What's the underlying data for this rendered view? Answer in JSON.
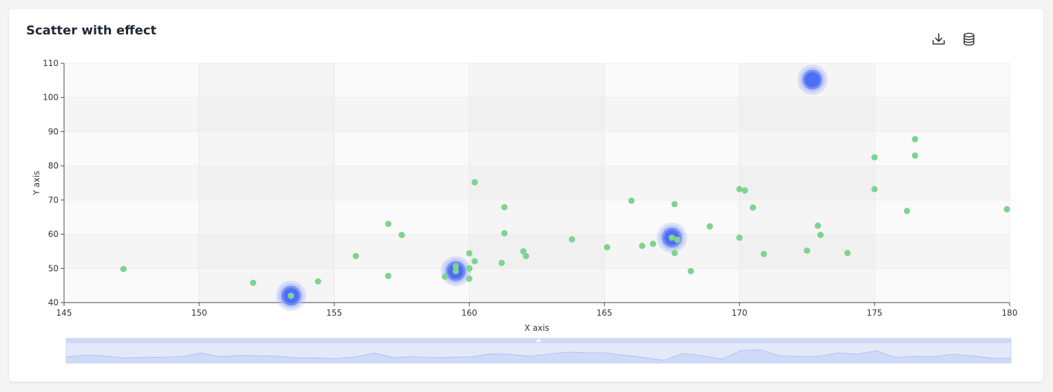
{
  "header": {
    "title": "Scatter with effect"
  },
  "toolbox": {
    "download_icon": "download-icon",
    "data_view_icon": "database-icon"
  },
  "colors": {
    "scatter_point": "#7dd48f",
    "effect_point": "#4d6ef5",
    "effect_ripple": "#a9b8f7",
    "axis_line": "#444444",
    "split_area_a": "#fafafa",
    "split_area_b": "#f4f4f4",
    "zoom_fill": "#dde6f8",
    "zoom_line": "#a7bdf0"
  },
  "chart_data": {
    "type": "scatter",
    "title": "Scatter with effect",
    "xlabel": "X axis",
    "ylabel": "Y axis",
    "xlim": [
      145,
      180
    ],
    "ylim": [
      40,
      110
    ],
    "x_ticks": [
      145,
      150,
      155,
      160,
      165,
      170,
      175,
      180
    ],
    "y_ticks": [
      40,
      50,
      60,
      70,
      80,
      90,
      100,
      110
    ],
    "grid": true,
    "split_area": true,
    "series": [
      {
        "points": [
          [
            147.2,
            49.8
          ],
          [
            152.0,
            45.8
          ],
          [
            154.4,
            46.2
          ],
          [
            155.8,
            53.6
          ],
          [
            157.0,
            63.0
          ],
          [
            157.0,
            47.8
          ],
          [
            157.5,
            59.8
          ],
          [
            159.1,
            47.6
          ],
          [
            159.5,
            50.6
          ],
          [
            159.5,
            49.2
          ],
          [
            160.0,
            54.4
          ],
          [
            160.0,
            50.0
          ],
          [
            160.0,
            47.0
          ],
          [
            160.2,
            52.1
          ],
          [
            160.2,
            75.2
          ],
          [
            161.2,
            51.6
          ],
          [
            161.3,
            67.9
          ],
          [
            161.3,
            60.3
          ],
          [
            162.0,
            55.0
          ],
          [
            162.1,
            53.6
          ],
          [
            163.8,
            58.5
          ],
          [
            165.1,
            56.2
          ],
          [
            166.0,
            69.8
          ],
          [
            166.4,
            56.6
          ],
          [
            166.8,
            57.2
          ],
          [
            167.6,
            68.8
          ],
          [
            167.6,
            54.5
          ],
          [
            167.5,
            59.0
          ],
          [
            168.2,
            49.2
          ],
          [
            168.9,
            62.3
          ],
          [
            170.0,
            73.2
          ],
          [
            170.0,
            59.0
          ],
          [
            170.2,
            72.8
          ],
          [
            170.5,
            67.8
          ],
          [
            170.9,
            54.2
          ],
          [
            172.5,
            55.2
          ],
          [
            172.9,
            62.5
          ],
          [
            173.0,
            59.8
          ],
          [
            174.0,
            54.5
          ],
          [
            175.0,
            82.5
          ],
          [
            175.0,
            73.2
          ],
          [
            176.2,
            66.8
          ],
          [
            176.5,
            87.8
          ],
          [
            176.5,
            83.0
          ],
          [
            179.9,
            67.3
          ],
          [
            153.4,
            42.0
          ],
          [
            167.7,
            58.4
          ],
          [
            160.0,
            50.0
          ]
        ]
      },
      {
        "effect": "ripple",
        "points": [
          [
            172.7,
            105.2
          ],
          [
            153.4,
            42.0
          ],
          [
            159.5,
            49.2
          ],
          [
            167.5,
            59.0
          ]
        ]
      }
    ]
  },
  "data_zoom": {
    "start_percent": 0,
    "end_percent": 100,
    "preview_values": [
      5,
      7,
      6,
      4,
      4.4,
      4.8,
      5.3,
      9,
      5.2,
      6.5,
      6,
      5.8,
      3.9,
      4.1,
      3.2,
      5,
      8.8,
      4.3,
      5.3,
      4.1,
      4.8,
      5,
      8,
      7.7,
      5.6,
      7.9,
      10,
      9.3,
      9.1,
      6.7,
      4.2,
      1.4,
      8.7,
      6.3,
      2.7,
      11.5,
      12.4,
      6,
      5.6,
      5.6,
      9,
      7.8,
      11.2,
      4.5,
      5.5,
      5.3,
      7.7,
      6.1,
      3.6,
      3.4
    ]
  }
}
